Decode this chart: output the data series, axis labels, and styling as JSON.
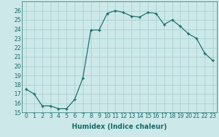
{
  "x": [
    0,
    1,
    2,
    3,
    4,
    5,
    6,
    7,
    8,
    9,
    10,
    11,
    12,
    13,
    14,
    15,
    16,
    17,
    18,
    19,
    20,
    21,
    22,
    23
  ],
  "y": [
    17.5,
    17.0,
    15.7,
    15.7,
    15.4,
    15.4,
    16.4,
    18.7,
    23.9,
    23.9,
    25.7,
    26.0,
    25.8,
    25.4,
    25.3,
    25.8,
    25.7,
    24.5,
    25.0,
    24.3,
    23.5,
    23.0,
    21.4,
    20.6
  ],
  "line_color": "#1a6b6b",
  "marker": "+",
  "marker_size": 3,
  "marker_lw": 1.0,
  "line_width": 0.9,
  "bg_color": "#cce8e8",
  "grid_color": "#aacfcf",
  "xlabel": "Humidex (Indice chaleur)",
  "ylim": [
    15,
    27
  ],
  "xlim": [
    -0.5,
    23.5
  ],
  "yticks": [
    15,
    16,
    17,
    18,
    19,
    20,
    21,
    22,
    23,
    24,
    25,
    26
  ],
  "xticks": [
    0,
    1,
    2,
    3,
    4,
    5,
    6,
    7,
    8,
    9,
    10,
    11,
    12,
    13,
    14,
    15,
    16,
    17,
    18,
    19,
    20,
    21,
    22,
    23
  ],
  "xlabel_fontsize": 7.0,
  "tick_fontsize": 6.0
}
